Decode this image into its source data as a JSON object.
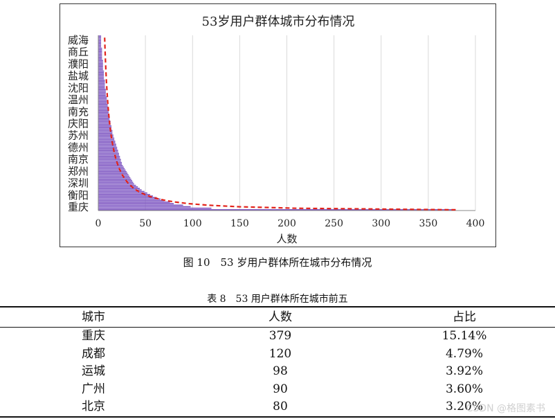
{
  "chart_data": {
    "type": "bar",
    "orientation": "horizontal",
    "title": "53岁用户群体城市分布情况",
    "xlabel": "人数",
    "xlim": [
      0,
      400
    ],
    "xticks": [
      0,
      50,
      100,
      150,
      200,
      250,
      300,
      350,
      400
    ],
    "grid": "vertical",
    "category_labels_shown": [
      "威海",
      "商丘",
      "濮阳",
      "盐城",
      "沈阳",
      "温州",
      "南充",
      "庆阳",
      "苏州",
      "德州",
      "南京",
      "郑州",
      "深圳",
      "衡阳",
      "重庆"
    ],
    "values_descending": [
      379,
      120,
      98,
      90,
      80,
      76,
      70,
      66,
      62,
      58,
      55,
      52,
      49,
      46,
      44,
      42,
      40,
      38,
      37,
      36,
      35,
      34,
      33,
      32,
      31,
      30,
      29,
      28,
      27,
      26,
      25,
      25,
      24,
      24,
      23,
      23,
      22,
      22,
      21,
      21,
      20,
      20,
      19,
      19,
      18,
      18,
      17,
      17,
      16,
      16,
      15,
      15,
      15,
      14,
      14,
      14,
      13,
      13,
      13,
      12,
      12,
      12,
      11,
      11,
      11,
      11,
      10,
      10,
      10,
      10,
      9,
      9,
      9,
      9,
      9,
      8,
      8,
      8,
      8,
      8,
      7,
      7,
      7,
      7,
      7,
      7,
      6,
      6,
      6,
      6,
      6,
      6,
      5,
      5,
      5,
      5,
      5,
      5,
      5,
      4,
      4,
      4,
      4,
      4,
      4,
      4,
      4,
      3,
      3,
      3,
      3,
      3,
      3,
      3,
      3
    ],
    "trendline": "dashed red power trendline",
    "colors": {
      "bars": "#7b53c1",
      "trend": "#e2231a",
      "grid": "#d9d9d9",
      "axis": "#888888"
    }
  },
  "figure_caption": "图 10　53 岁用户群体所在城市分布情况",
  "table_caption": "表 8　53 用户群体所在城市前五",
  "table": {
    "headers": [
      "城市",
      "人数",
      "占比"
    ],
    "rows": [
      [
        "重庆",
        "379",
        "15.14%"
      ],
      [
        "成都",
        "120",
        "4.79%"
      ],
      [
        "运城",
        "98",
        "3.92%"
      ],
      [
        "广州",
        "90",
        "3.60%"
      ],
      [
        "北京",
        "80",
        "3.20%"
      ]
    ]
  },
  "watermark": "CSDN @格图素书"
}
